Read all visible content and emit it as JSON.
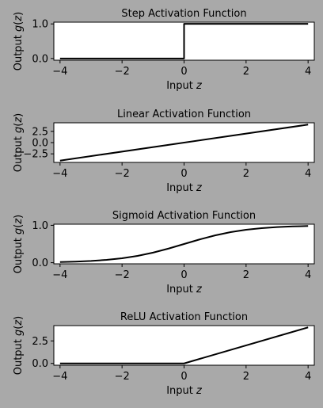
{
  "chart_data": [
    {
      "type": "line",
      "title": "Step Activation Function",
      "xlabel": "Input z",
      "ylabel": "Output g(z)",
      "xlim": [
        -4.2,
        4.2
      ],
      "ylim": [
        -0.05,
        1.05
      ],
      "xticks": [
        -4,
        -2,
        0,
        2,
        4
      ],
      "xtick_labels": [
        "−4",
        "−2",
        "0",
        "2",
        "4"
      ],
      "yticks": [
        0.0,
        1.0
      ],
      "ytick_labels": [
        "0.0",
        "1.0"
      ],
      "grid": false,
      "series": [
        {
          "x": [
            -4,
            0,
            0,
            4
          ],
          "y": [
            0,
            0,
            1,
            1
          ]
        }
      ]
    },
    {
      "type": "line",
      "title": "Linear Activation Function",
      "xlabel": "Input z",
      "ylabel": "Output g(z)",
      "xlim": [
        -4.2,
        4.2
      ],
      "ylim": [
        -4.4,
        4.4
      ],
      "xticks": [
        -4,
        -2,
        0,
        2,
        4
      ],
      "xtick_labels": [
        "−4",
        "−2",
        "0",
        "2",
        "4"
      ],
      "yticks": [
        -2.5,
        0.0,
        2.5
      ],
      "ytick_labels": [
        "−2.5",
        "0.0",
        "2.5"
      ],
      "grid": false,
      "series": [
        {
          "x": [
            -4,
            4
          ],
          "y": [
            -4,
            4
          ]
        }
      ]
    },
    {
      "type": "line",
      "title": "Sigmoid Activation Function",
      "xlabel": "Input z",
      "ylabel": "Output g(z)",
      "xlim": [
        -4.2,
        4.2
      ],
      "ylim": [
        -0.03,
        1.03
      ],
      "xticks": [
        -4,
        -2,
        0,
        2,
        4
      ],
      "xtick_labels": [
        "−4",
        "−2",
        "0",
        "2",
        "4"
      ],
      "yticks": [
        0.0,
        1.0
      ],
      "ytick_labels": [
        "0.0",
        "1.0"
      ],
      "grid": false,
      "series": [
        {
          "x": [
            -4,
            -3.5,
            -3,
            -2.5,
            -2,
            -1.5,
            -1,
            -0.5,
            0,
            0.5,
            1,
            1.5,
            2,
            2.5,
            3,
            3.5,
            4
          ],
          "y": [
            0.018,
            0.029,
            0.047,
            0.076,
            0.119,
            0.182,
            0.269,
            0.378,
            0.5,
            0.622,
            0.731,
            0.818,
            0.881,
            0.924,
            0.953,
            0.971,
            0.982
          ]
        }
      ]
    },
    {
      "type": "line",
      "title": "ReLU Activation Function",
      "xlabel": "Input z",
      "ylabel": "Output g(z)",
      "xlim": [
        -4.2,
        4.2
      ],
      "ylim": [
        -0.2,
        4.2
      ],
      "xticks": [
        -4,
        -2,
        0,
        2,
        4
      ],
      "xtick_labels": [
        "−4",
        "−2",
        "0",
        "2",
        "4"
      ],
      "yticks": [
        0.0,
        2.5
      ],
      "ytick_labels": [
        "0.0",
        "2.5"
      ],
      "grid": false,
      "series": [
        {
          "x": [
            -4,
            0,
            4
          ],
          "y": [
            0,
            0,
            4
          ]
        }
      ]
    }
  ]
}
